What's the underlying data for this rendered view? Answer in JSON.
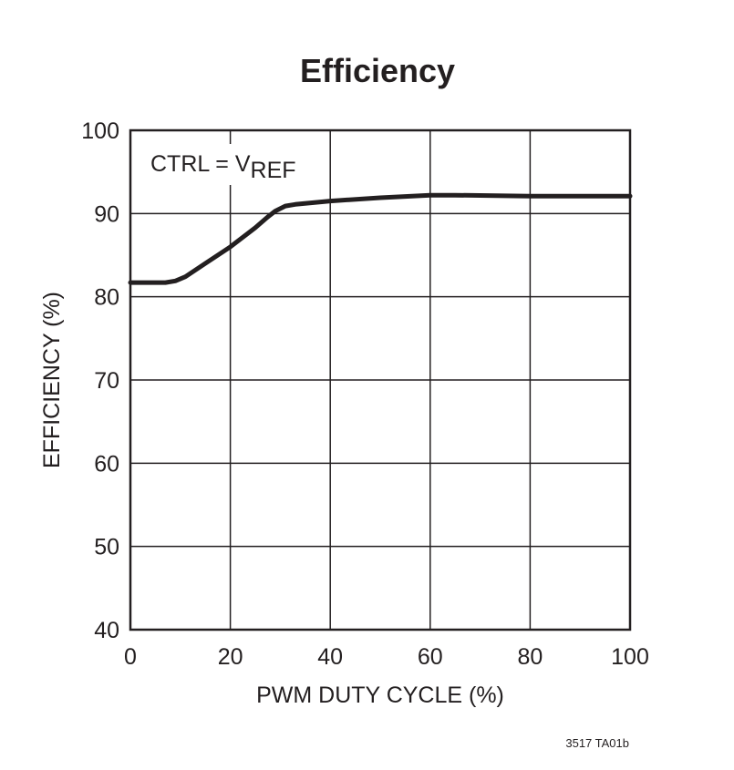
{
  "chart_data": {
    "type": "line",
    "title": "Efficiency",
    "xlabel": "PWM DUTY CYCLE (%)",
    "ylabel": "EFFICIENCY (%)",
    "xlim": [
      0,
      100
    ],
    "ylim": [
      40,
      100
    ],
    "xticks": [
      0,
      20,
      40,
      60,
      80,
      100
    ],
    "yticks": [
      40,
      50,
      60,
      70,
      80,
      90,
      100
    ],
    "grid": true,
    "annotation": {
      "main": "CTRL = V",
      "subscript": "REF"
    },
    "series": [
      {
        "x": [
          0,
          5,
          7,
          9,
          11,
          15,
          20,
          25,
          27.5,
          29,
          31,
          33,
          40,
          50,
          60,
          65,
          80,
          100
        ],
        "y": [
          81.7,
          81.7,
          81.7,
          81.9,
          82.4,
          84.0,
          86.0,
          88.3,
          89.6,
          90.3,
          90.9,
          91.1,
          91.5,
          91.9,
          92.2,
          92.2,
          92.1,
          92.1
        ]
      }
    ],
    "line_color": "#231f20",
    "footnote": "3517 TA01b"
  }
}
